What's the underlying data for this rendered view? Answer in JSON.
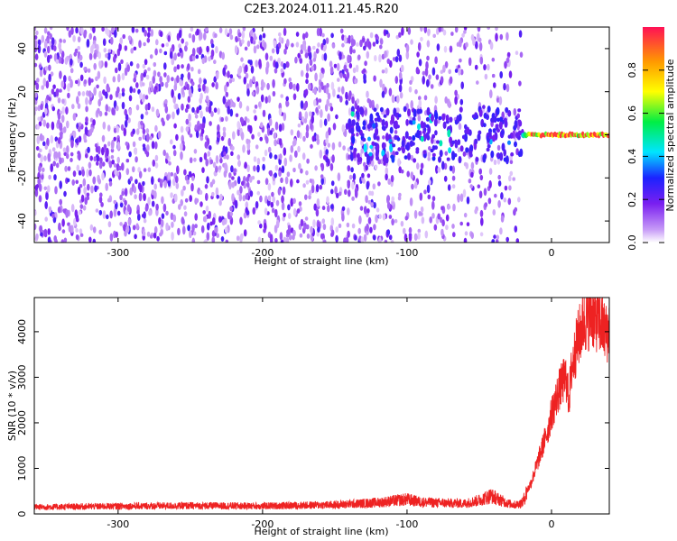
{
  "title": "C2E3.2024.011.21.45.R20",
  "colors": {
    "spectrogram_low": "#e4c8f8",
    "spectrogram_mid": "#7a1ff0",
    "snr_line": "#ee2222",
    "colorbar_stops": [
      "#ffffff",
      "#c79bf7",
      "#7a1ff0",
      "#1c22ff",
      "#00e5ff",
      "#00ee44",
      "#ffff00",
      "#ff9900",
      "#ff1155"
    ]
  },
  "chart_data": [
    {
      "type": "heatmap",
      "name": "spectrogram",
      "xlabel": "Height of straight line (km)",
      "ylabel": "Frequency (Hz)",
      "xlim": [
        -358,
        40
      ],
      "ylim": [
        -50,
        50
      ],
      "xticks": [
        -300,
        -200,
        -100,
        0
      ],
      "yticks": [
        -40,
        -20,
        0,
        20,
        40
      ],
      "xtick_labels": [
        "-300",
        "-200",
        "-100",
        "0"
      ],
      "ytick_labels": [
        "-40",
        "-20",
        "0",
        "20",
        "40"
      ],
      "colorbar": {
        "label": "Normalized spectral amplitude",
        "range": [
          0,
          1
        ],
        "ticks": [
          0.0,
          0.2,
          0.4,
          0.6,
          0.8
        ],
        "tick_labels": [
          "0.0",
          "0.2",
          "0.4",
          "0.6",
          "0.8"
        ]
      },
      "features": {
        "noise_region_x": [
          -358,
          -20
        ],
        "noise_amplitude": 0.15,
        "scatter_cluster_x": [
          -140,
          -20
        ],
        "scatter_cluster_amplitude": 0.4,
        "signal_line_x": [
          -20,
          40
        ],
        "signal_line_frequency": 0,
        "signal_line_amplitude": 1.0
      }
    },
    {
      "type": "line",
      "name": "snr",
      "xlabel": "Height of straight line (km)",
      "ylabel": "SNR (10 * v/v)",
      "xlim": [
        -358,
        40
      ],
      "ylim": [
        0,
        4750
      ],
      "xticks": [
        -300,
        -200,
        -100,
        0
      ],
      "yticks": [
        0,
        1000,
        2000,
        3000,
        4000
      ],
      "xtick_labels": [
        "-300",
        "-200",
        "-100",
        "0"
      ],
      "ytick_labels": [
        "0",
        "1000",
        "2000",
        "3000",
        "4000"
      ],
      "x": [
        -358,
        -300,
        -250,
        -200,
        -150,
        -120,
        -100,
        -90,
        -75,
        -60,
        -50,
        -42,
        -35,
        -30,
        -25,
        -20,
        -17,
        -14,
        -12,
        -10,
        -7,
        -5,
        -2,
        0,
        3,
        5,
        8,
        10,
        12,
        14,
        16,
        18,
        20,
        22,
        25,
        28,
        30,
        32,
        35,
        38,
        40
      ],
      "y": [
        150,
        170,
        180,
        175,
        200,
        250,
        320,
        260,
        240,
        230,
        300,
        400,
        300,
        230,
        200,
        250,
        500,
        700,
        900,
        1100,
        1400,
        1600,
        1900,
        2200,
        2500,
        2700,
        2900,
        3000,
        2500,
        3200,
        3500,
        3800,
        4000,
        4200,
        4300,
        4400,
        4250,
        4300,
        4100,
        3950,
        4100
      ]
    }
  ]
}
